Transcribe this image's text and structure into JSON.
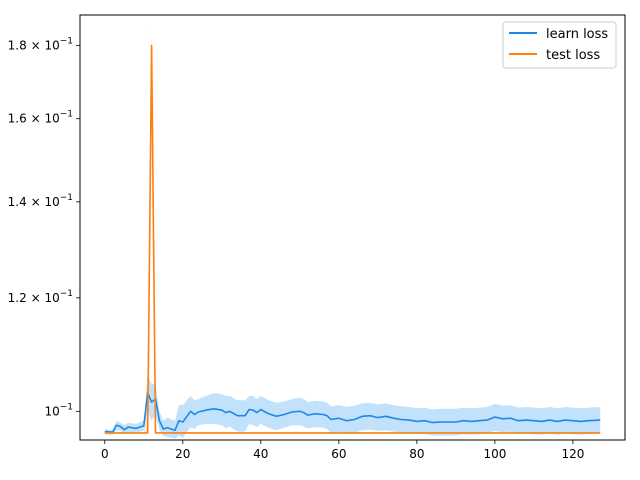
{
  "chart_data": {
    "type": "line",
    "title": "",
    "xlabel": "",
    "ylabel": "",
    "yscale": "log",
    "xlim": [
      -6.35,
      133.35
    ],
    "ylim": [
      0.0955,
      0.189
    ],
    "grid": false,
    "legend_position": "top-right",
    "x_ticks": [
      0,
      20,
      40,
      60,
      80,
      100,
      120
    ],
    "x_tick_labels": [
      "0",
      "20",
      "40",
      "60",
      "80",
      "100",
      "120"
    ],
    "y_ticks": [
      0.1,
      0.12,
      0.14,
      0.16,
      0.18
    ],
    "y_tick_labels": [
      {
        "mantissa": "",
        "base": "10",
        "exp": "−1"
      },
      {
        "mantissa": "1.2",
        "base": "10",
        "exp": "−1"
      },
      {
        "mantissa": "1.4",
        "base": "10",
        "exp": "−1"
      },
      {
        "mantissa": "1.6",
        "base": "10",
        "exp": "−1"
      },
      {
        "mantissa": "1.8",
        "base": "10",
        "exp": "−1"
      }
    ],
    "series": [
      {
        "name": "learn loss",
        "color": "#1f88e5",
        "band_color": "#90caf9",
        "points": [
          [
            0,
            0.0968
          ],
          [
            2,
            0.0967
          ],
          [
            3,
            0.0978
          ],
          [
            4,
            0.0976
          ],
          [
            5,
            0.0971
          ],
          [
            6,
            0.0975
          ],
          [
            8,
            0.0973
          ],
          [
            10,
            0.0977
          ],
          [
            11,
            0.103
          ],
          [
            12,
            0.1015
          ],
          [
            13,
            0.102
          ],
          [
            14,
            0.0985
          ],
          [
            15,
            0.0972
          ],
          [
            16,
            0.0974
          ],
          [
            18,
            0.097
          ],
          [
            19,
            0.0985
          ],
          [
            20,
            0.0983
          ],
          [
            22,
            0.1
          ],
          [
            23,
            0.0995
          ],
          [
            24,
            0.0999
          ],
          [
            26,
            0.1002
          ],
          [
            28,
            0.1004
          ],
          [
            30,
            0.1002
          ],
          [
            31,
            0.0998
          ],
          [
            32,
            0.1
          ],
          [
            34,
            0.0993
          ],
          [
            36,
            0.0993
          ],
          [
            37,
            0.1003
          ],
          [
            38,
            0.1002
          ],
          [
            39,
            0.0998
          ],
          [
            40,
            0.1003
          ],
          [
            42,
            0.0996
          ],
          [
            44,
            0.0992
          ],
          [
            46,
            0.0995
          ],
          [
            48,
            0.0999
          ],
          [
            50,
            0.1
          ],
          [
            51,
            0.0998
          ],
          [
            52,
            0.0994
          ],
          [
            54,
            0.0996
          ],
          [
            56,
            0.0995
          ],
          [
            57,
            0.0993
          ],
          [
            58,
            0.0987
          ],
          [
            60,
            0.0989
          ],
          [
            62,
            0.0985
          ],
          [
            64,
            0.0987
          ],
          [
            66,
            0.0992
          ],
          [
            68,
            0.0993
          ],
          [
            70,
            0.099
          ],
          [
            72,
            0.0992
          ],
          [
            74,
            0.0989
          ],
          [
            76,
            0.0987
          ],
          [
            78,
            0.0986
          ],
          [
            80,
            0.0984
          ],
          [
            82,
            0.0985
          ],
          [
            84,
            0.0982
          ],
          [
            86,
            0.0983
          ],
          [
            88,
            0.0983
          ],
          [
            90,
            0.0983
          ],
          [
            92,
            0.0985
          ],
          [
            94,
            0.0984
          ],
          [
            96,
            0.0985
          ],
          [
            98,
            0.0986
          ],
          [
            100,
            0.0991
          ],
          [
            102,
            0.0988
          ],
          [
            104,
            0.0989
          ],
          [
            106,
            0.0985
          ],
          [
            108,
            0.0986
          ],
          [
            110,
            0.0985
          ],
          [
            112,
            0.0984
          ],
          [
            114,
            0.0986
          ],
          [
            116,
            0.0984
          ],
          [
            118,
            0.0986
          ],
          [
            120,
            0.0985
          ],
          [
            122,
            0.0984
          ],
          [
            124,
            0.0985
          ],
          [
            127,
            0.0986
          ]
        ],
        "band_upper": [
          [
            0,
            0.0972
          ],
          [
            2,
            0.097
          ],
          [
            3,
            0.0985
          ],
          [
            4,
            0.0982
          ],
          [
            5,
            0.0978
          ],
          [
            6,
            0.0982
          ],
          [
            8,
            0.098
          ],
          [
            10,
            0.0985
          ],
          [
            11,
            0.106
          ],
          [
            12,
            0.1045
          ],
          [
            13,
            0.1045
          ],
          [
            14,
            0.1
          ],
          [
            15,
            0.0985
          ],
          [
            16,
            0.099
          ],
          [
            18,
            0.0985
          ],
          [
            19,
            0.101
          ],
          [
            20,
            0.101
          ],
          [
            22,
            0.1025
          ],
          [
            23,
            0.1018
          ],
          [
            24,
            0.102
          ],
          [
            26,
            0.1025
          ],
          [
            28,
            0.103
          ],
          [
            30,
            0.1028
          ],
          [
            31,
            0.1025
          ],
          [
            32,
            0.1025
          ],
          [
            34,
            0.1018
          ],
          [
            36,
            0.1018
          ],
          [
            37,
            0.1025
          ],
          [
            38,
            0.1025
          ],
          [
            39,
            0.102
          ],
          [
            40,
            0.1025
          ],
          [
            42,
            0.1018
          ],
          [
            44,
            0.1014
          ],
          [
            46,
            0.1016
          ],
          [
            48,
            0.102
          ],
          [
            50,
            0.1022
          ],
          [
            51,
            0.102
          ],
          [
            52,
            0.1015
          ],
          [
            54,
            0.1017
          ],
          [
            56,
            0.1016
          ],
          [
            57,
            0.1014
          ],
          [
            58,
            0.1008
          ],
          [
            60,
            0.101
          ],
          [
            62,
            0.1007
          ],
          [
            64,
            0.1009
          ],
          [
            66,
            0.1013
          ],
          [
            68,
            0.1014
          ],
          [
            70,
            0.1011
          ],
          [
            72,
            0.1013
          ],
          [
            74,
            0.101
          ],
          [
            76,
            0.1008
          ],
          [
            78,
            0.1007
          ],
          [
            80,
            0.1005
          ],
          [
            82,
            0.1006
          ],
          [
            84,
            0.1003
          ],
          [
            86,
            0.1004
          ],
          [
            88,
            0.1004
          ],
          [
            90,
            0.1004
          ],
          [
            92,
            0.1006
          ],
          [
            94,
            0.1005
          ],
          [
            96,
            0.1006
          ],
          [
            98,
            0.1007
          ],
          [
            100,
            0.1012
          ],
          [
            102,
            0.1009
          ],
          [
            104,
            0.101
          ],
          [
            106,
            0.1006
          ],
          [
            108,
            0.1007
          ],
          [
            110,
            0.1006
          ],
          [
            112,
            0.1005
          ],
          [
            114,
            0.1007
          ],
          [
            116,
            0.1005
          ],
          [
            118,
            0.1007
          ],
          [
            120,
            0.1006
          ],
          [
            122,
            0.1005
          ],
          [
            124,
            0.1006
          ],
          [
            127,
            0.1007
          ]
        ],
        "band_lower": [
          [
            0,
            0.0964
          ],
          [
            2,
            0.0963
          ],
          [
            3,
            0.097
          ],
          [
            4,
            0.0969
          ],
          [
            5,
            0.0965
          ],
          [
            6,
            0.0968
          ],
          [
            8,
            0.0966
          ],
          [
            10,
            0.0969
          ],
          [
            11,
            0.1
          ],
          [
            12,
            0.0985
          ],
          [
            13,
            0.0995
          ],
          [
            14,
            0.097
          ],
          [
            15,
            0.0962
          ],
          [
            16,
            0.096
          ],
          [
            18,
            0.0957
          ],
          [
            19,
            0.0962
          ],
          [
            20,
            0.0958
          ],
          [
            22,
            0.0975
          ],
          [
            23,
            0.0972
          ],
          [
            24,
            0.0978
          ],
          [
            26,
            0.098
          ],
          [
            28,
            0.098
          ],
          [
            30,
            0.0978
          ],
          [
            31,
            0.0973
          ],
          [
            32,
            0.0976
          ],
          [
            34,
            0.0968
          ],
          [
            36,
            0.0968
          ],
          [
            37,
            0.098
          ],
          [
            38,
            0.0978
          ],
          [
            39,
            0.0975
          ],
          [
            40,
            0.098
          ],
          [
            42,
            0.0974
          ],
          [
            44,
            0.097
          ],
          [
            46,
            0.0974
          ],
          [
            48,
            0.0978
          ],
          [
            50,
            0.0978
          ],
          [
            51,
            0.0976
          ],
          [
            52,
            0.0973
          ],
          [
            54,
            0.0975
          ],
          [
            56,
            0.0974
          ],
          [
            57,
            0.0972
          ],
          [
            58,
            0.0966
          ],
          [
            60,
            0.0968
          ],
          [
            62,
            0.0964
          ],
          [
            64,
            0.0966
          ],
          [
            66,
            0.097
          ],
          [
            68,
            0.0971
          ],
          [
            70,
            0.0969
          ],
          [
            72,
            0.097
          ],
          [
            74,
            0.0968
          ],
          [
            76,
            0.0966
          ],
          [
            78,
            0.0965
          ],
          [
            80,
            0.0964
          ],
          [
            82,
            0.0964
          ],
          [
            84,
            0.0962
          ],
          [
            86,
            0.0962
          ],
          [
            88,
            0.0962
          ],
          [
            90,
            0.0962
          ],
          [
            92,
            0.0964
          ],
          [
            94,
            0.0963
          ],
          [
            96,
            0.0964
          ],
          [
            98,
            0.0965
          ],
          [
            100,
            0.0969
          ],
          [
            102,
            0.0967
          ],
          [
            104,
            0.0968
          ],
          [
            106,
            0.0964
          ],
          [
            108,
            0.0965
          ],
          [
            110,
            0.0964
          ],
          [
            112,
            0.0963
          ],
          [
            114,
            0.0965
          ],
          [
            116,
            0.0963
          ],
          [
            118,
            0.0965
          ],
          [
            120,
            0.0964
          ],
          [
            122,
            0.0963
          ],
          [
            124,
            0.0964
          ],
          [
            127,
            0.0965
          ]
        ]
      },
      {
        "name": "test loss",
        "color": "#ff7f0e",
        "band_color": "#ffcc99",
        "points": [
          [
            0,
            0.0966
          ],
          [
            10,
            0.0966
          ],
          [
            11,
            0.0966
          ],
          [
            12,
            0.18
          ],
          [
            13,
            0.0966
          ],
          [
            127,
            0.0966
          ]
        ],
        "band_upper": [
          [
            0,
            0.0966
          ],
          [
            10,
            0.0966
          ],
          [
            11,
            0.108
          ],
          [
            12,
            0.185
          ],
          [
            13,
            0.0966
          ],
          [
            127,
            0.0966
          ]
        ],
        "band_lower": [
          [
            0,
            0.0966
          ],
          [
            10,
            0.0966
          ],
          [
            11,
            0.0966
          ],
          [
            12,
            0.17
          ],
          [
            13,
            0.0966
          ],
          [
            127,
            0.0966
          ]
        ]
      }
    ]
  }
}
